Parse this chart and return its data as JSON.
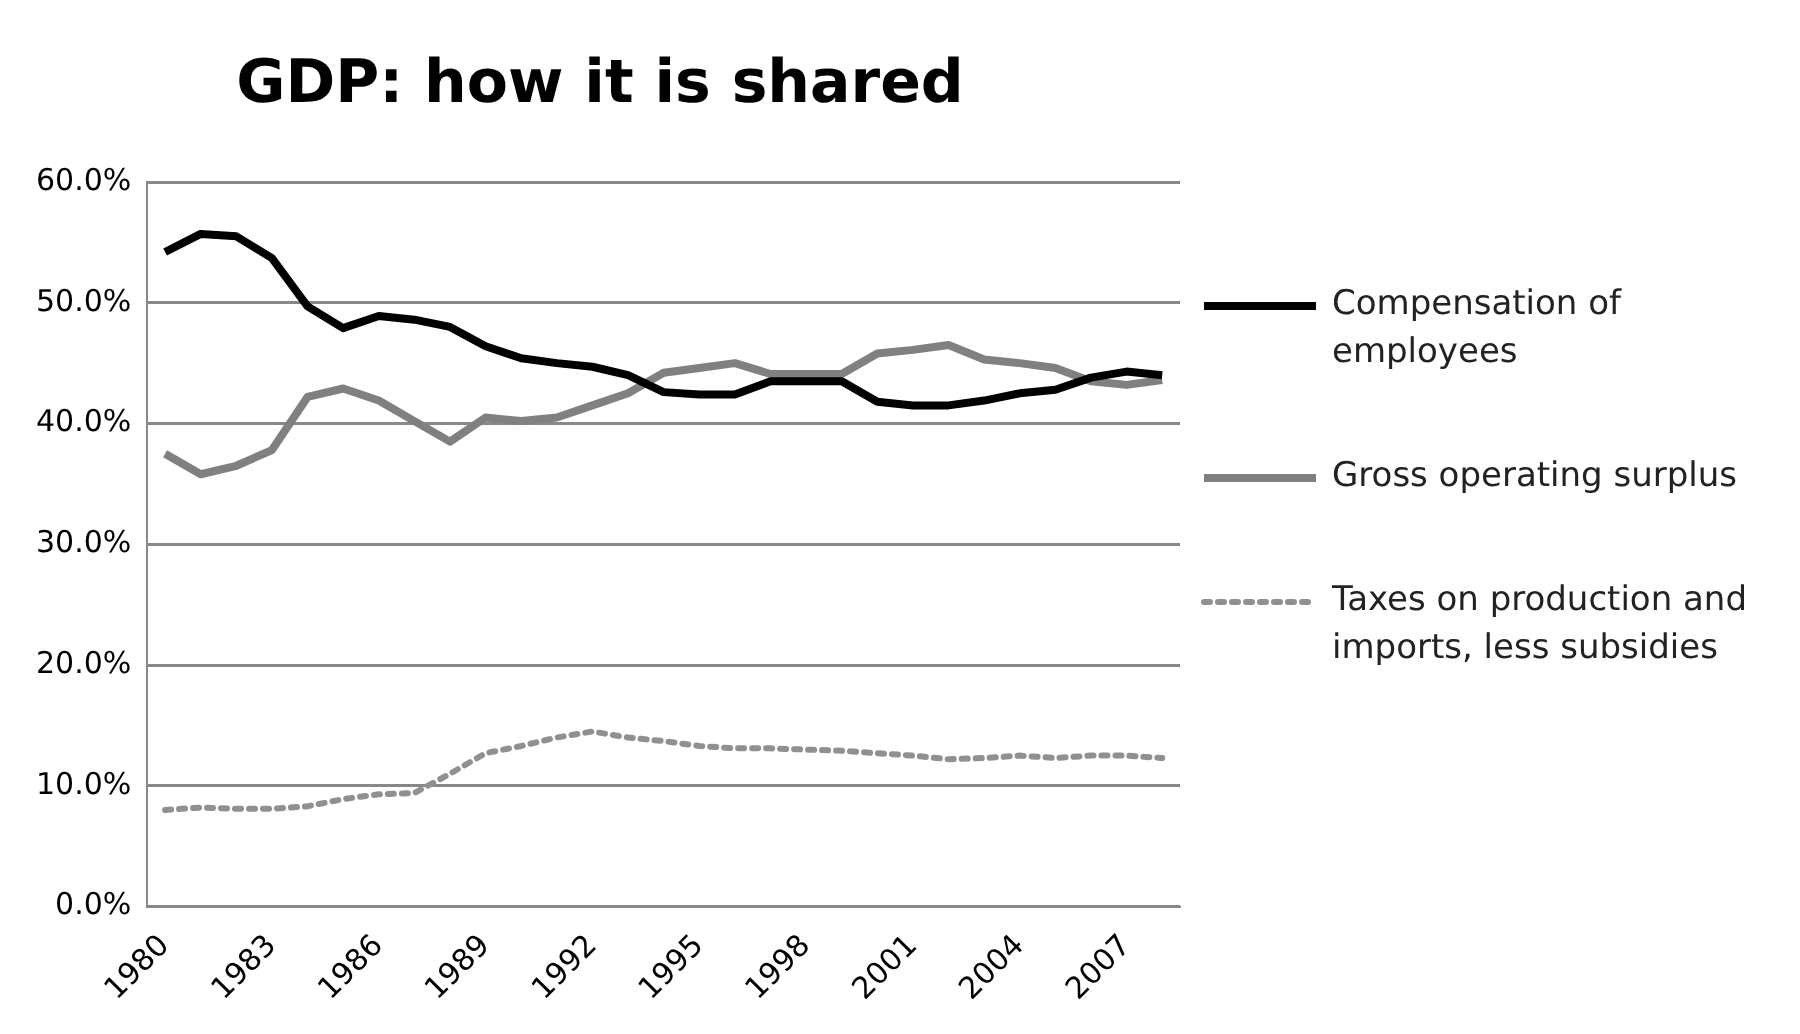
{
  "chart_data": {
    "type": "line",
    "title": "GDP: how it is shared",
    "categories": [
      "1980",
      null,
      null,
      "1983",
      null,
      null,
      "1986",
      null,
      null,
      "1989",
      null,
      null,
      "1992",
      null,
      null,
      "1995",
      null,
      null,
      "1998",
      null,
      null,
      "2001",
      null,
      null,
      "2004",
      null,
      null,
      "2007",
      null
    ],
    "series": [
      {
        "name": "Compensation of employees",
        "color": "#000000",
        "line_style": "solid",
        "values": [
          54.2,
          55.7,
          55.5,
          53.7,
          49.7,
          47.9,
          48.9,
          48.6,
          48.0,
          46.4,
          45.4,
          45.0,
          44.7,
          44.0,
          42.6,
          42.4,
          42.4,
          43.5,
          43.5,
          43.5,
          41.8,
          41.5,
          41.5,
          41.9,
          42.5,
          42.8,
          43.8,
          44.3,
          44.0
        ]
      },
      {
        "name": "Gross operating surplus",
        "color": "#808080",
        "line_style": "solid",
        "values": [
          37.5,
          35.8,
          36.5,
          37.8,
          42.2,
          42.9,
          41.9,
          40.2,
          38.5,
          40.5,
          40.2,
          40.5,
          41.5,
          42.5,
          44.2,
          44.6,
          45.0,
          44.1,
          44.1,
          44.1,
          45.8,
          46.1,
          46.5,
          45.3,
          45.0,
          44.6,
          43.5,
          43.2,
          43.6
        ]
      },
      {
        "name": "Taxes on production and imports, less subsidies",
        "color": "#909090",
        "line_style": "dotted",
        "values": [
          8.0,
          8.2,
          8.1,
          8.1,
          8.3,
          8.9,
          9.3,
          9.4,
          11.0,
          12.7,
          13.3,
          14.0,
          14.5,
          14.0,
          13.7,
          13.3,
          13.1,
          13.1,
          13.0,
          12.9,
          12.7,
          12.5,
          12.2,
          12.3,
          12.5,
          12.3,
          12.5,
          12.5,
          12.3
        ]
      }
    ],
    "ylim": [
      0,
      60
    ],
    "yticks": [
      {
        "value": 0,
        "label": "0.0%"
      },
      {
        "value": 10,
        "label": "10.0%"
      },
      {
        "value": 20,
        "label": "20.0%"
      },
      {
        "value": 30,
        "label": "30.0%"
      },
      {
        "value": 40,
        "label": "40.0%"
      },
      {
        "value": 50,
        "label": "50.0%"
      },
      {
        "value": 60,
        "label": "60.0%"
      }
    ],
    "grid": "y",
    "legend": "right",
    "marker": "none"
  }
}
